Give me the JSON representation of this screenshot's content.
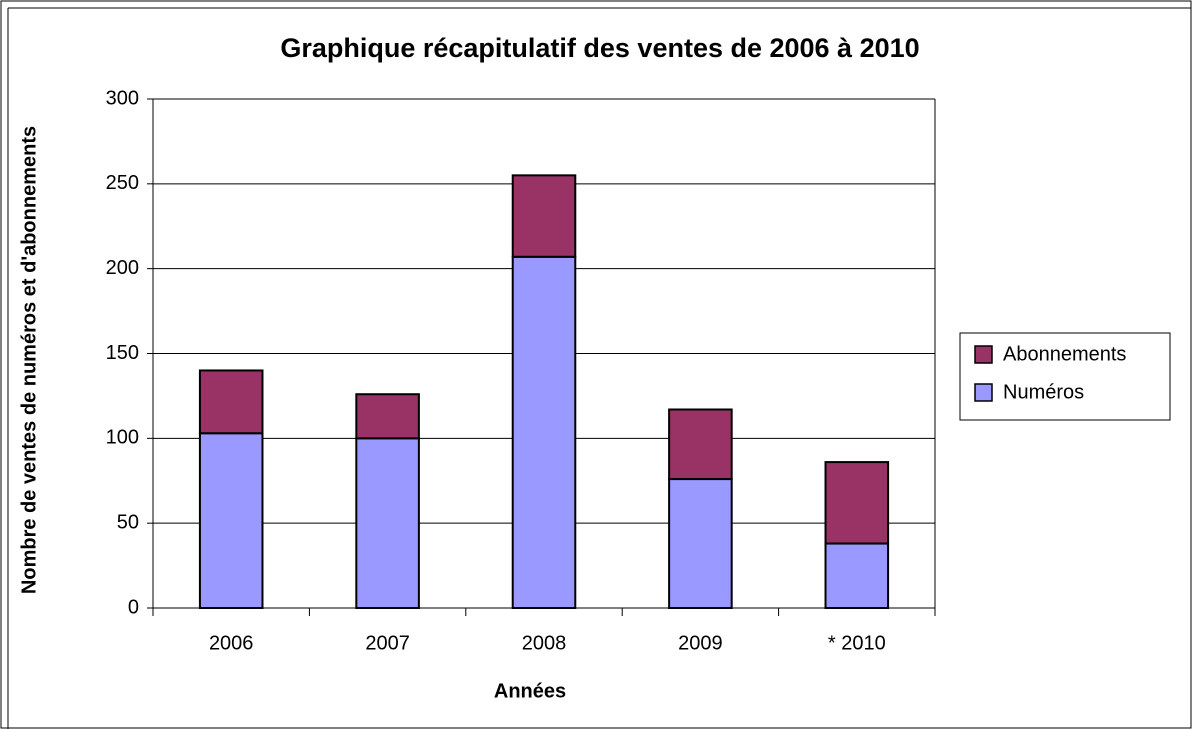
{
  "chart_data": {
    "type": "stacked_bar",
    "title": "Graphique récapitulatif des ventes de 2006 à 2010",
    "x_label": "Années",
    "y_label": "Nombre de ventes de numéros et d'abonnements",
    "categories": [
      "2006",
      "2007",
      "2008",
      "2009",
      "* 2010"
    ],
    "series": [
      {
        "name": "Numéros",
        "color": "#9999ff",
        "values": [
          103,
          100,
          207,
          76,
          38
        ]
      },
      {
        "name": "Abonnements",
        "color": "#993366",
        "values": [
          37,
          26,
          48,
          41,
          48
        ]
      }
    ],
    "ylim": [
      0,
      300
    ],
    "yticks": [
      0,
      50,
      100,
      150,
      200,
      250,
      300
    ],
    "grid": true,
    "legend": "right"
  }
}
